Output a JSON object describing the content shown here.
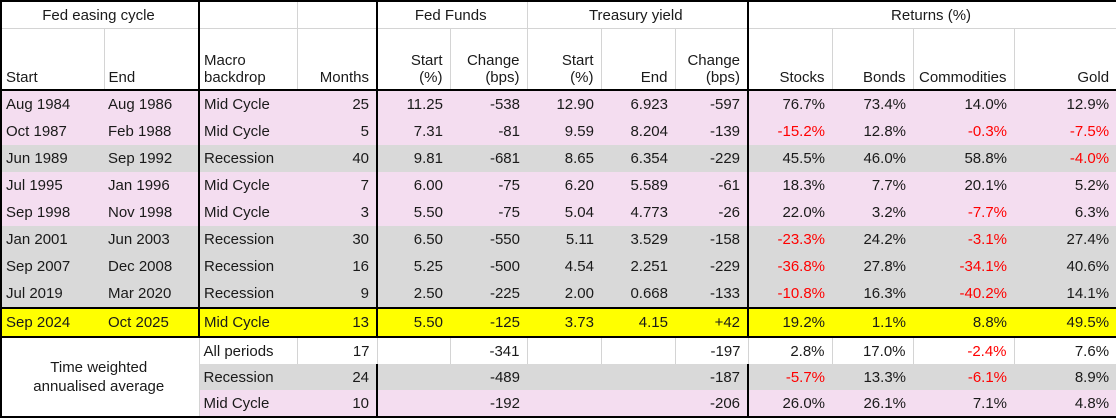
{
  "chart_data": {
    "type": "table",
    "groups": {
      "fed_easing_cycle": "Fed easing cycle",
      "fed_funds": "Fed Funds",
      "treasury_yield": "Treasury yield",
      "returns": "Returns (%)"
    },
    "columns": {
      "start": "Start",
      "end": "End",
      "macro_line1": "Macro",
      "macro_line2": "backdrop",
      "months": "Months",
      "ff_start_line1": "Start",
      "ff_start_line2": "(%)",
      "ff_change_line1": "Change",
      "ff_change_line2": "(bps)",
      "ty_start_line1": "Start",
      "ty_start_line2": "(%)",
      "ty_end": "End",
      "ty_change_line1": "Change",
      "ty_change_line2": "(bps)",
      "stocks": "Stocks",
      "bonds": "Bonds",
      "commodities": "Commodities",
      "gold": "Gold"
    },
    "rows": [
      {
        "start": "Aug 1984",
        "end": "Aug 1986",
        "macro": "Mid Cycle",
        "months": "25",
        "ff_start": "11.25",
        "ff_change": "-538",
        "ty_start": "12.90",
        "ty_end": "6.923",
        "ty_change": "-597",
        "stocks": "76.7%",
        "bonds": "73.4%",
        "commodities": "14.0%",
        "gold": "12.9%",
        "style": "pink"
      },
      {
        "start": "Oct 1987",
        "end": "Feb 1988",
        "macro": "Mid Cycle",
        "months": "5",
        "ff_start": "7.31",
        "ff_change": "-81",
        "ty_start": "9.59",
        "ty_end": "8.204",
        "ty_change": "-139",
        "stocks": "-15.2%",
        "bonds": "12.8%",
        "commodities": "-0.3%",
        "gold": "-7.5%",
        "style": "pink"
      },
      {
        "start": "Jun 1989",
        "end": "Sep 1992",
        "macro": "Recession",
        "months": "40",
        "ff_start": "9.81",
        "ff_change": "-681",
        "ty_start": "8.65",
        "ty_end": "6.354",
        "ty_change": "-229",
        "stocks": "45.5%",
        "bonds": "46.0%",
        "commodities": "58.8%",
        "gold": "-4.0%",
        "style": "gray"
      },
      {
        "start": "Jul 1995",
        "end": "Jan 1996",
        "macro": "Mid Cycle",
        "months": "7",
        "ff_start": "6.00",
        "ff_change": "-75",
        "ty_start": "6.20",
        "ty_end": "5.589",
        "ty_change": "-61",
        "stocks": "18.3%",
        "bonds": "7.7%",
        "commodities": "20.1%",
        "gold": "5.2%",
        "style": "pink"
      },
      {
        "start": "Sep 1998",
        "end": "Nov 1998",
        "macro": "Mid Cycle",
        "months": "3",
        "ff_start": "5.50",
        "ff_change": "-75",
        "ty_start": "5.04",
        "ty_end": "4.773",
        "ty_change": "-26",
        "stocks": "22.0%",
        "bonds": "3.2%",
        "commodities": "-7.7%",
        "gold": "6.3%",
        "style": "pink"
      },
      {
        "start": "Jan 2001",
        "end": "Jun 2003",
        "macro": "Recession",
        "months": "30",
        "ff_start": "6.50",
        "ff_change": "-550",
        "ty_start": "5.11",
        "ty_end": "3.529",
        "ty_change": "-158",
        "stocks": "-23.3%",
        "bonds": "24.2%",
        "commodities": "-3.1%",
        "gold": "27.4%",
        "style": "gray"
      },
      {
        "start": "Sep 2007",
        "end": "Dec 2008",
        "macro": "Recession",
        "months": "16",
        "ff_start": "5.25",
        "ff_change": "-500",
        "ty_start": "4.54",
        "ty_end": "2.251",
        "ty_change": "-229",
        "stocks": "-36.8%",
        "bonds": "27.8%",
        "commodities": "-34.1%",
        "gold": "40.6%",
        "style": "gray"
      },
      {
        "start": "Jul 2019",
        "end": "Mar 2020",
        "macro": "Recession",
        "months": "9",
        "ff_start": "2.50",
        "ff_change": "-225",
        "ty_start": "2.00",
        "ty_end": "0.668",
        "ty_change": "-133",
        "stocks": "-10.8%",
        "bonds": "16.3%",
        "commodities": "-40.2%",
        "gold": "14.1%",
        "style": "gray"
      },
      {
        "start": "Sep 2024",
        "end": "Oct 2025",
        "macro": "Mid Cycle",
        "months": "13",
        "ff_start": "5.50",
        "ff_change": "-125",
        "ty_start": "3.73",
        "ty_end": "4.15",
        "ty_change": "+42",
        "stocks": "19.2%",
        "bonds": "1.1%",
        "commodities": "8.8%",
        "gold": "49.5%",
        "style": "yellow"
      }
    ],
    "summary": {
      "label_line1": "Time weighted",
      "label_line2": "annualised average",
      "rows": [
        {
          "macro": "All periods",
          "months": "17",
          "ff_change": "-341",
          "ty_change": "-197",
          "stocks": "2.8%",
          "bonds": "17.0%",
          "commodities": "-2.4%",
          "gold": "7.6%",
          "style": "white"
        },
        {
          "macro": "Recession",
          "months": "24",
          "ff_change": "-489",
          "ty_change": "-187",
          "stocks": "-5.7%",
          "bonds": "13.3%",
          "commodities": "-6.1%",
          "gold": "8.9%",
          "style": "gray"
        },
        {
          "macro": "Mid Cycle",
          "months": "10",
          "ff_change": "-192",
          "ty_change": "-206",
          "stocks": "26.0%",
          "bonds": "26.1%",
          "commodities": "7.1%",
          "gold": "4.8%",
          "style": "pink"
        }
      ]
    },
    "colors": {
      "row_pink": "#F4DDF0",
      "row_gray": "#D9D9D9",
      "row_highlight_yellow": "#FFFF00",
      "negative_return_red": "#FF0000",
      "border_black": "#000000"
    }
  }
}
